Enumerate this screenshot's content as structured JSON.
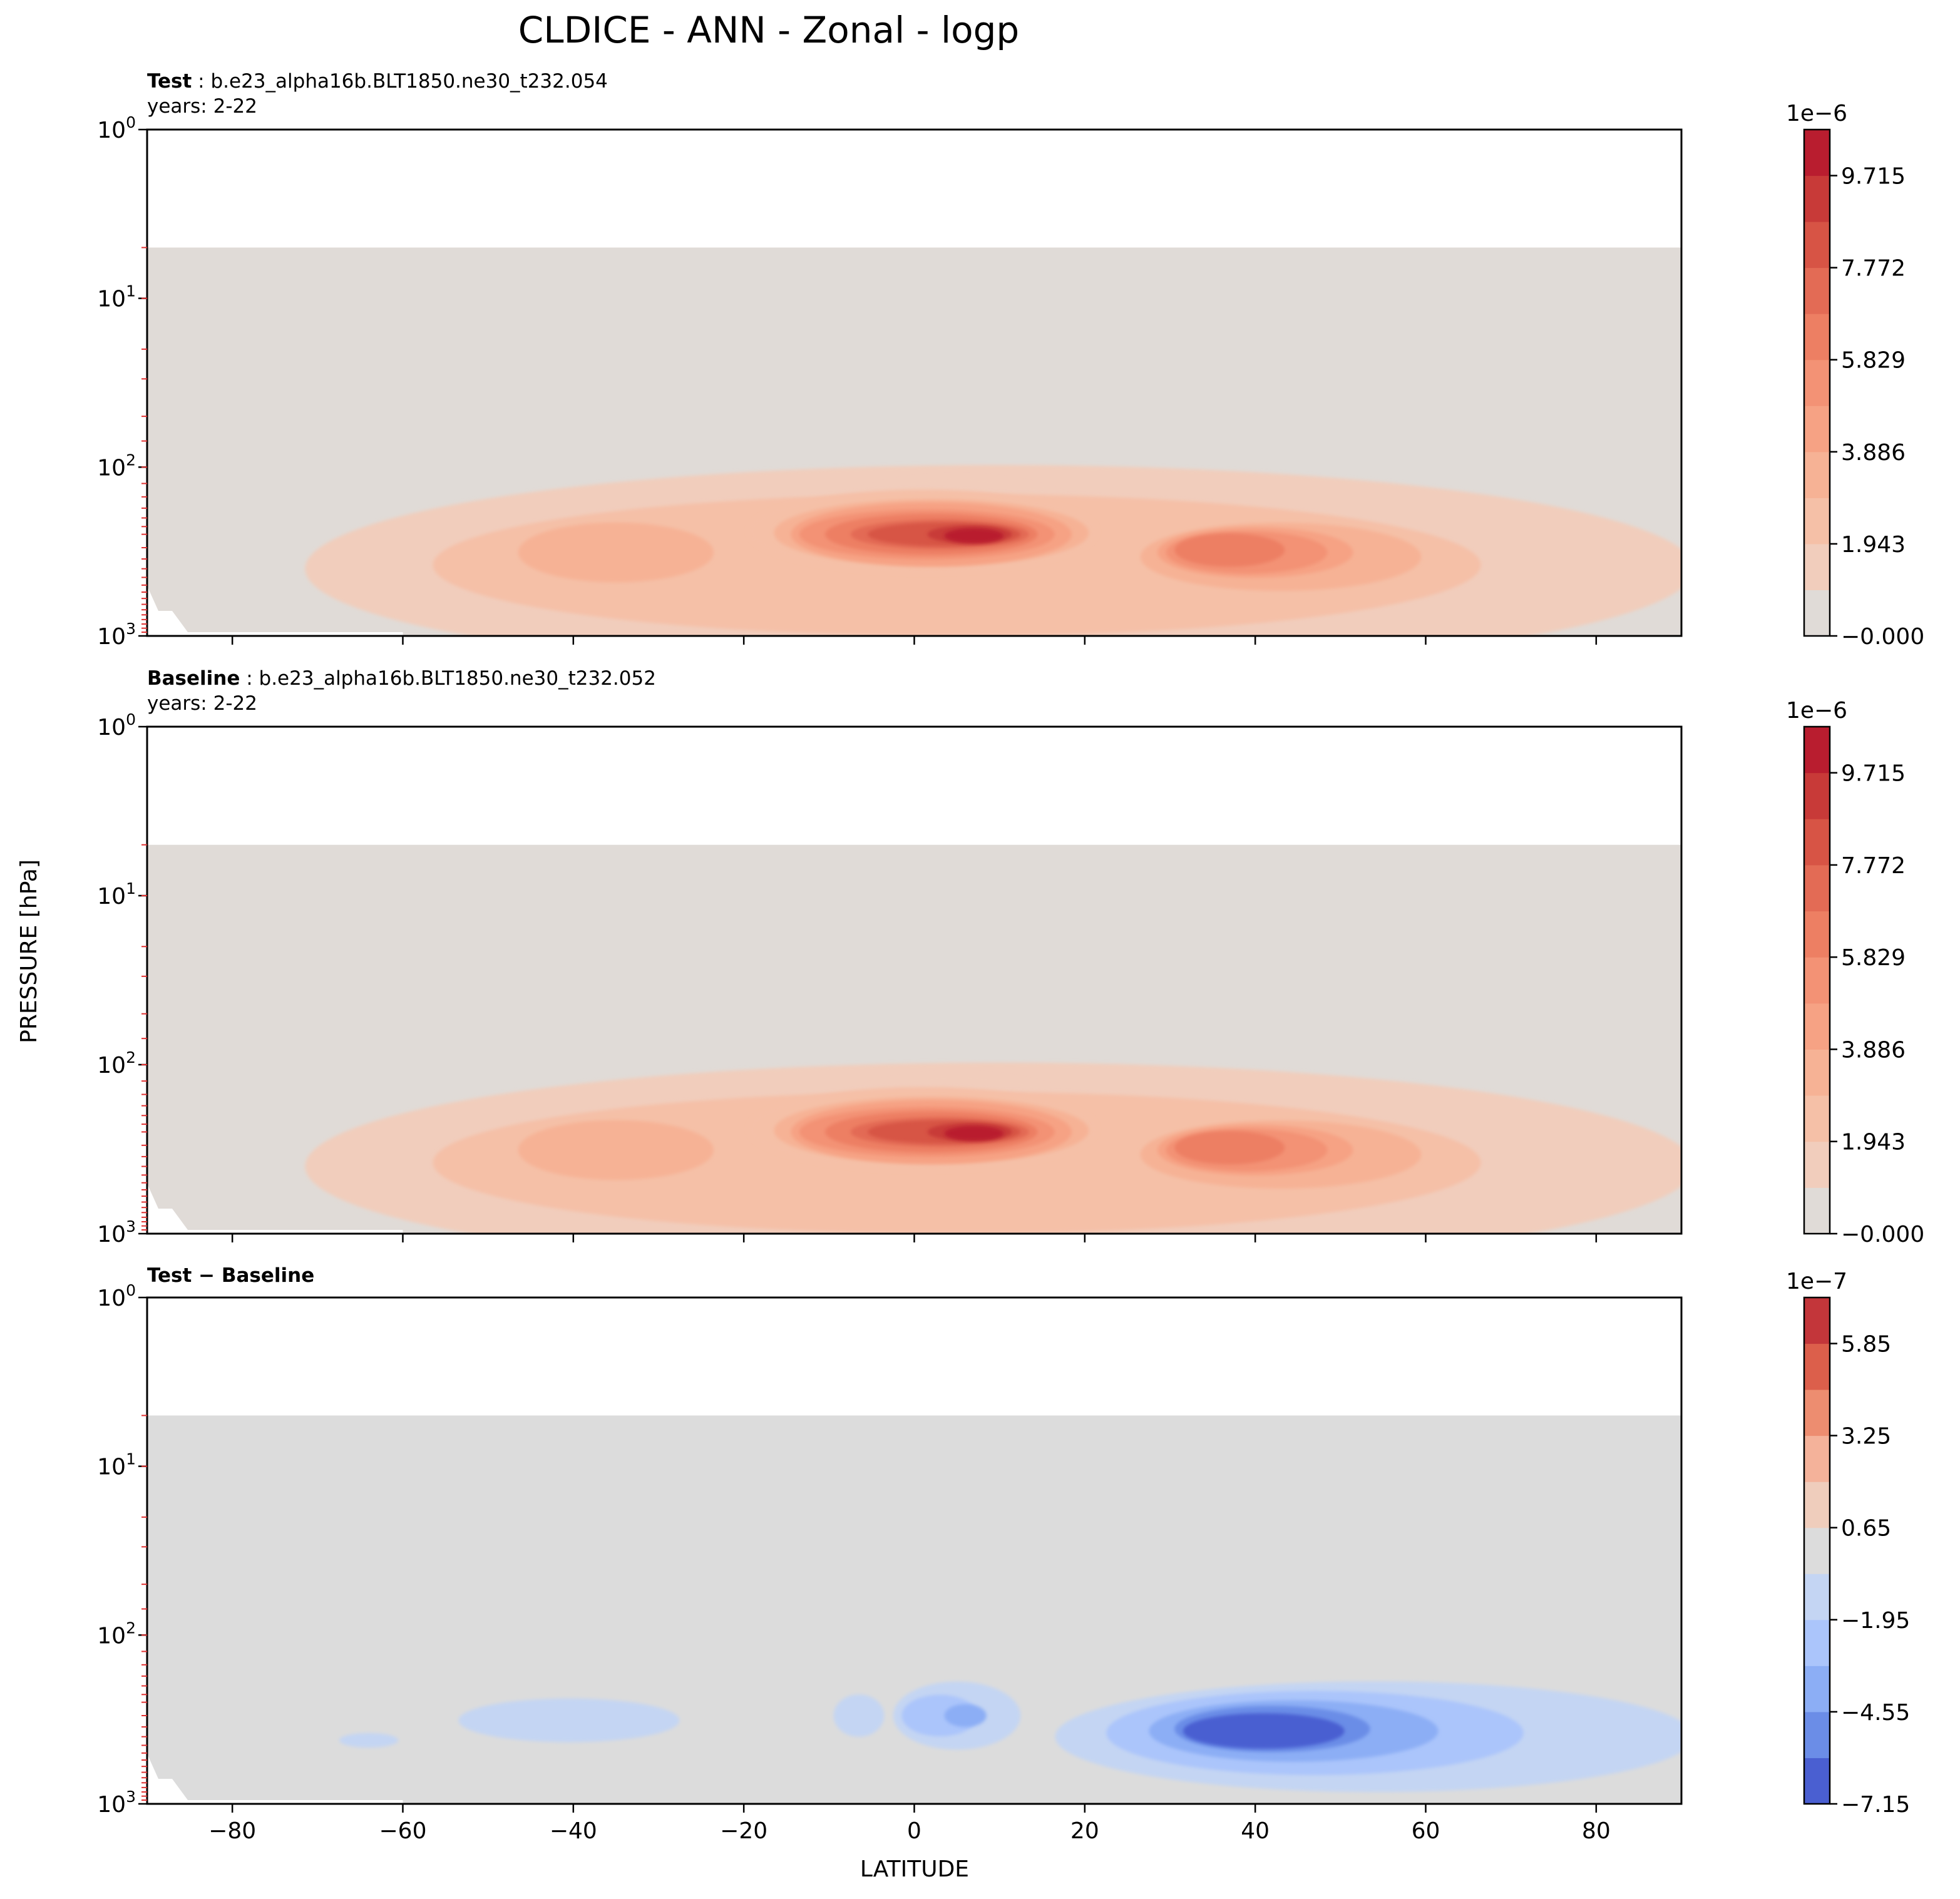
{
  "figure": {
    "title": "CLDICE - ANN - Zonal - logp",
    "ylabel": "PRESSURE [hPa]",
    "xlabel": "LATITUDE"
  },
  "chart_data": [
    {
      "type": "heatmap",
      "role": "test",
      "title_bold": "Test",
      "title_rest": ": b.e23_alpha16b.BLT1850.ne30_t232.054",
      "subtitle": "years: 2-22",
      "x_range": [
        -90,
        90
      ],
      "y_range_hpa": [
        1,
        1000
      ],
      "y_scale": "log",
      "y_ticks": [
        "10^0",
        "10^1",
        "10^2",
        "10^3"
      ],
      "x_ticks": [
        -80,
        -60,
        -40,
        -20,
        0,
        20,
        40,
        60,
        80
      ],
      "x_tick_labels_shown": false,
      "colormap": "coolwarm",
      "colorbar_multiplier": "1e−6",
      "colorbar_tick_labels": [
        "9.715",
        "7.772",
        "5.829",
        "3.886",
        "1.943",
        "−0.000"
      ],
      "colorbar_range": [
        0,
        10.687
      ],
      "colorbar_levels": [
        0,
        0.972,
        1.943,
        2.915,
        3.886,
        4.858,
        5.829,
        6.801,
        7.772,
        8.744,
        9.715,
        10.687
      ],
      "level_colors": [
        "#e0dbd7",
        "#f1cdbc",
        "#f5c0a7",
        "#f6b295",
        "#f6a284",
        "#f39275",
        "#ed7f63",
        "#e36b55",
        "#d75445",
        "#c83a38",
        "#b91d2f"
      ],
      "data_top_hpa": 5,
      "features": [
        {
          "name": "tropical maximum",
          "lat_center": 7,
          "p_center_hpa": 250,
          "max_level_index": 10
        },
        {
          "name": "southern tropics",
          "lat_center": -5,
          "p_center_hpa": 250,
          "max_level_index": 8
        },
        {
          "name": "northern midlatitude band",
          "lat_center": 35,
          "p_center_hpa": 330,
          "max_level_index": 6
        },
        {
          "name": "southern midlatitude band",
          "lat_center": -40,
          "p_center_hpa": 320,
          "max_level_index": 3
        }
      ]
    },
    {
      "type": "heatmap",
      "role": "baseline",
      "title_bold": "Baseline",
      "title_rest": ": b.e23_alpha16b.BLT1850.ne30_t232.052",
      "subtitle": "years: 2-22",
      "x_range": [
        -90,
        90
      ],
      "y_range_hpa": [
        1,
        1000
      ],
      "y_scale": "log",
      "y_ticks": [
        "10^0",
        "10^1",
        "10^2",
        "10^3"
      ],
      "x_ticks": [
        -80,
        -60,
        -40,
        -20,
        0,
        20,
        40,
        60,
        80
      ],
      "x_tick_labels_shown": false,
      "colormap": "coolwarm",
      "colorbar_multiplier": "1e−6",
      "colorbar_tick_labels": [
        "9.715",
        "7.772",
        "5.829",
        "3.886",
        "1.943",
        "−0.000"
      ],
      "colorbar_range": [
        0,
        10.687
      ],
      "colorbar_levels": [
        0,
        0.972,
        1.943,
        2.915,
        3.886,
        4.858,
        5.829,
        6.801,
        7.772,
        8.744,
        9.715,
        10.687
      ],
      "level_colors": [
        "#e0dbd7",
        "#f1cdbc",
        "#f5c0a7",
        "#f6b295",
        "#f6a284",
        "#f39275",
        "#ed7f63",
        "#e36b55",
        "#d75445",
        "#c83a38",
        "#b91d2f"
      ],
      "data_top_hpa": 5,
      "features": [
        {
          "name": "tropical maximum",
          "lat_center": 7,
          "p_center_hpa": 250,
          "max_level_index": 10
        },
        {
          "name": "southern tropics",
          "lat_center": -5,
          "p_center_hpa": 250,
          "max_level_index": 8
        },
        {
          "name": "northern midlatitude band",
          "lat_center": 35,
          "p_center_hpa": 320,
          "max_level_index": 6
        },
        {
          "name": "southern midlatitude band",
          "lat_center": -40,
          "p_center_hpa": 320,
          "max_level_index": 3
        }
      ]
    },
    {
      "type": "heatmap",
      "role": "difference",
      "title_bold": "Test − Baseline",
      "title_rest": "",
      "subtitle": "",
      "x_range": [
        -90,
        90
      ],
      "y_range_hpa": [
        1,
        1000
      ],
      "y_scale": "log",
      "y_ticks": [
        "10^0",
        "10^1",
        "10^2",
        "10^3"
      ],
      "x_ticks": [
        -80,
        -60,
        -40,
        -20,
        0,
        20,
        40,
        60,
        80
      ],
      "x_tick_labels": [
        "−80",
        "−60",
        "−40",
        "−20",
        "0",
        "20",
        "40",
        "60",
        "80"
      ],
      "x_tick_labels_shown": true,
      "colormap": "coolwarm",
      "colorbar_multiplier": "1e−7",
      "colorbar_tick_labels": [
        "5.85",
        "3.25",
        "0.65",
        "−1.95",
        "−4.55",
        "−7.15"
      ],
      "colorbar_range": [
        -7.15,
        7.15
      ],
      "colorbar_levels": [
        -7.15,
        -5.85,
        -4.55,
        -3.25,
        -1.95,
        -0.65,
        0.65,
        1.95,
        3.25,
        4.55,
        5.85,
        7.15
      ],
      "level_colors": [
        "#4a5fd1",
        "#6b8de7",
        "#8caef5",
        "#abc5fb",
        "#c4d5f3",
        "#dcdcdc",
        "#efcdbc",
        "#f4b29a",
        "#ed8d70",
        "#dc5f4b",
        "#c3363a"
      ],
      "data_top_hpa": 5,
      "features": [
        {
          "name": "northern midlatitude decrease",
          "lat_center": 38,
          "p_center_hpa": 370,
          "min_level_index": 0
        },
        {
          "name": "tropical decrease",
          "lat_center": 5,
          "p_center_hpa": 320,
          "min_level_index": 3
        },
        {
          "name": "southern midlatitude decrease",
          "lat_center": -40,
          "p_center_hpa": 330,
          "min_level_index": 4
        }
      ]
    }
  ]
}
